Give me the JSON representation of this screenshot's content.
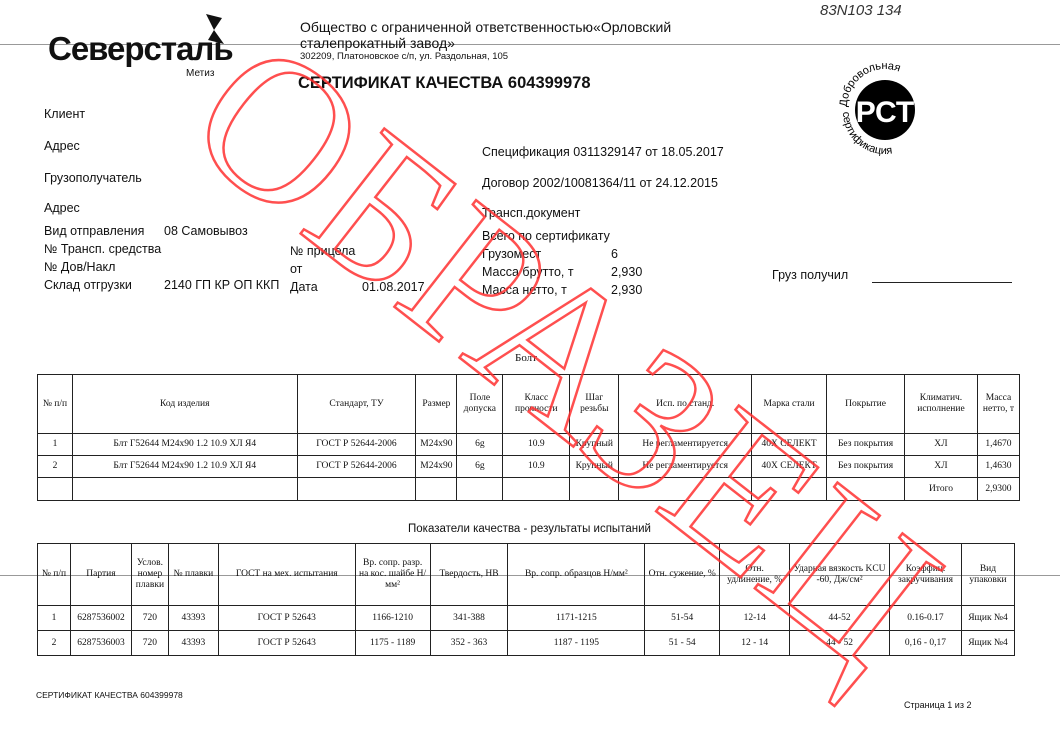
{
  "header": {
    "brand": "Северсталь",
    "brand_sub": "Метиз",
    "company_line1": "Общество с ограниченной ответственностью«Орловский",
    "company_line2": "сталепрокатный завод»",
    "address": "302209, Платоновское с/п, ул. Раздольная, 105",
    "handwritten": "83N103 134",
    "cert_title": "СЕРТИФИКАТ КАЧЕСТВА 604399978",
    "seal_top": "Добровольная",
    "seal_bottom": "сертификация",
    "seal_mark": "РСТ"
  },
  "fields": {
    "client": "Клиент",
    "address": "Адрес",
    "consignee": "Грузополучатель",
    "address2": "Адрес",
    "ship_type_label": "Вид отправления",
    "ship_type": "08 Самовывоз",
    "vehicle": "№ Трансп. средства",
    "trailer": "№ прицела",
    "dov_label": "№ Дов/Накл",
    "ot": "от",
    "warehouse_label": "Склад отгрузки",
    "warehouse": "2140 ГП КР ОП ККП",
    "date_label": "Дата",
    "date": "01.08.2017",
    "spec": "Спецификация  0311329147 от 18.05.2017",
    "contract": "Договор  2002/10081364/11 от 24.12.2015",
    "transport_doc": "Трансп.документ",
    "total_label": "Всего по сертификату",
    "places_label": "Грузомест",
    "places": "6",
    "gross_label": "Масса брутто, т",
    "gross": "2,930",
    "net_label": "Масса нетто, т",
    "net": "2,930",
    "received": "Груз получил"
  },
  "table1": {
    "title": "Болт",
    "headers": [
      "№ п/п",
      "Код изделия",
      "Стандарт, ТУ",
      "Размер",
      "Поле допуска",
      "Класс прочности",
      "Шаг резьбы",
      "Исп. по станд.",
      "Марка стали",
      "Покрытие",
      "Климатич. исполнение",
      "Масса нетто, т"
    ],
    "rows": [
      [
        "1",
        "Блт Г52644 М24х90 1.2 10.9 ХЛ Я4",
        "ГОСТ Р 52644-2006",
        "М24х90",
        "6g",
        "10.9",
        "Крупный",
        "Не регламентируется",
        "40Х СЕЛЕКТ",
        "Без покрытия",
        "ХЛ",
        "1,4670"
      ],
      [
        "2",
        "Блт Г52644 М24х90 1.2 10.9 ХЛ Я4",
        "ГОСТ Р 52644-2006",
        "М24х90",
        "6g",
        "10.9",
        "Крупный",
        "Не регламентируется",
        "40Х СЕЛЕКТ",
        "Без покрытия",
        "ХЛ",
        "1,4630"
      ]
    ],
    "total_label": "Итого",
    "total": "2,9300"
  },
  "table2": {
    "title": "Показатели качества - результаты испытаний",
    "headers": [
      "№ п/п",
      "Партия",
      "Услов. номер плавки",
      "№ плавки",
      "ГОСТ на мех. испытания",
      "Вр. сопр. разр. на кос. шайбе Н/мм²",
      "Твердость, HB",
      "Вр. сопр. образцов Н/мм²",
      "Отн. сужение, %",
      "Отн. удлинение, %",
      "Ударная вязкость KCU -60, Дж/см²",
      "Коэффиц. закручивания",
      "Вид упаковки"
    ],
    "rows": [
      [
        "1",
        "6287536002",
        "720",
        "43393",
        "ГОСТ Р 52643",
        "1166-1210",
        "341-388",
        "1171-1215",
        "51-54",
        "12-14",
        "44-52",
        "0.16-0.17",
        "Ящик №4"
      ],
      [
        "2",
        "6287536003",
        "720",
        "43393",
        "ГОСТ Р 52643",
        "1175 - 1189",
        "352 - 363",
        "1187 - 1195",
        "51 - 54",
        "12 - 14",
        "44 - 52",
        "0,16 - 0,17",
        "Ящик №4"
      ]
    ]
  },
  "footer": {
    "left": "СЕРТИФИКАТ КАЧЕСТВА 604399978",
    "right": "Страница 1 из 2"
  },
  "watermark": {
    "text": "ОБРАЗЕЦ",
    "color": "#ff3030"
  }
}
